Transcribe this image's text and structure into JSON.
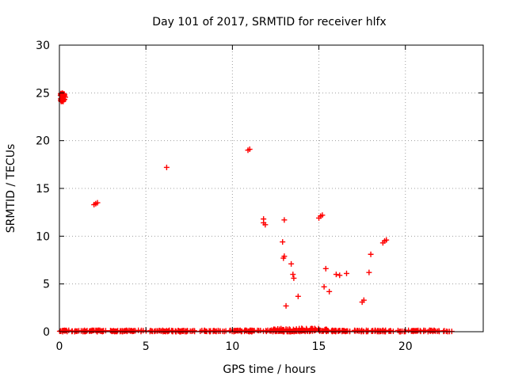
{
  "chart_data": {
    "type": "scatter",
    "title": "Day 101 of 2017, SRMTID for receiver hlfx",
    "xlabel": "GPS time / hours",
    "ylabel": "SRMTID / TECUs",
    "xlim": [
      0,
      24.5
    ],
    "ylim": [
      0,
      30
    ],
    "xticks": [
      0,
      5,
      10,
      15,
      20
    ],
    "xtick_labels": [
      "0",
      "5",
      "10",
      "15",
      "20"
    ],
    "yticks": [
      0,
      5,
      10,
      15,
      20,
      25,
      30
    ],
    "ytick_labels": [
      "0",
      "5",
      "10",
      "15",
      "20",
      "25",
      "30"
    ],
    "grid": true,
    "marker": "+",
    "series": [
      {
        "name": "SRMTID",
        "color": "#ff0000",
        "clusters": [
          {
            "x_range": [
              0.0,
              22.7
            ],
            "y_range": [
              0.0,
              0.15
            ],
            "count": 420
          },
          {
            "x_range": [
              0.05,
              0.35
            ],
            "y_range": [
              24.1,
              25.1
            ],
            "count": 40
          },
          {
            "x_range": [
              12.2,
              15.5
            ],
            "y_range": [
              0.0,
              0.35
            ],
            "count": 60
          }
        ],
        "points": [
          {
            "x": 2.0,
            "y": 13.3
          },
          {
            "x": 2.1,
            "y": 13.4
          },
          {
            "x": 2.2,
            "y": 13.5
          },
          {
            "x": 6.2,
            "y": 17.2
          },
          {
            "x": 10.9,
            "y": 19.0
          },
          {
            "x": 11.0,
            "y": 19.1
          },
          {
            "x": 11.8,
            "y": 11.8
          },
          {
            "x": 11.8,
            "y": 11.4
          },
          {
            "x": 11.9,
            "y": 11.2
          },
          {
            "x": 13.0,
            "y": 11.7
          },
          {
            "x": 12.9,
            "y": 9.4
          },
          {
            "x": 13.0,
            "y": 7.9
          },
          {
            "x": 12.95,
            "y": 7.7
          },
          {
            "x": 13.1,
            "y": 2.7
          },
          {
            "x": 13.4,
            "y": 7.1
          },
          {
            "x": 13.5,
            "y": 6.0
          },
          {
            "x": 13.55,
            "y": 5.6
          },
          {
            "x": 13.8,
            "y": 3.7
          },
          {
            "x": 15.0,
            "y": 11.9
          },
          {
            "x": 15.1,
            "y": 12.1
          },
          {
            "x": 15.2,
            "y": 12.2
          },
          {
            "x": 15.3,
            "y": 4.7
          },
          {
            "x": 15.4,
            "y": 6.6
          },
          {
            "x": 15.6,
            "y": 4.2
          },
          {
            "x": 16.0,
            "y": 6.0
          },
          {
            "x": 16.2,
            "y": 5.9
          },
          {
            "x": 16.6,
            "y": 6.1
          },
          {
            "x": 17.5,
            "y": 3.1
          },
          {
            "x": 17.6,
            "y": 3.3
          },
          {
            "x": 17.9,
            "y": 6.2
          },
          {
            "x": 18.0,
            "y": 8.1
          },
          {
            "x": 18.7,
            "y": 9.3
          },
          {
            "x": 18.8,
            "y": 9.5
          },
          {
            "x": 18.9,
            "y": 9.6
          }
        ]
      }
    ]
  }
}
